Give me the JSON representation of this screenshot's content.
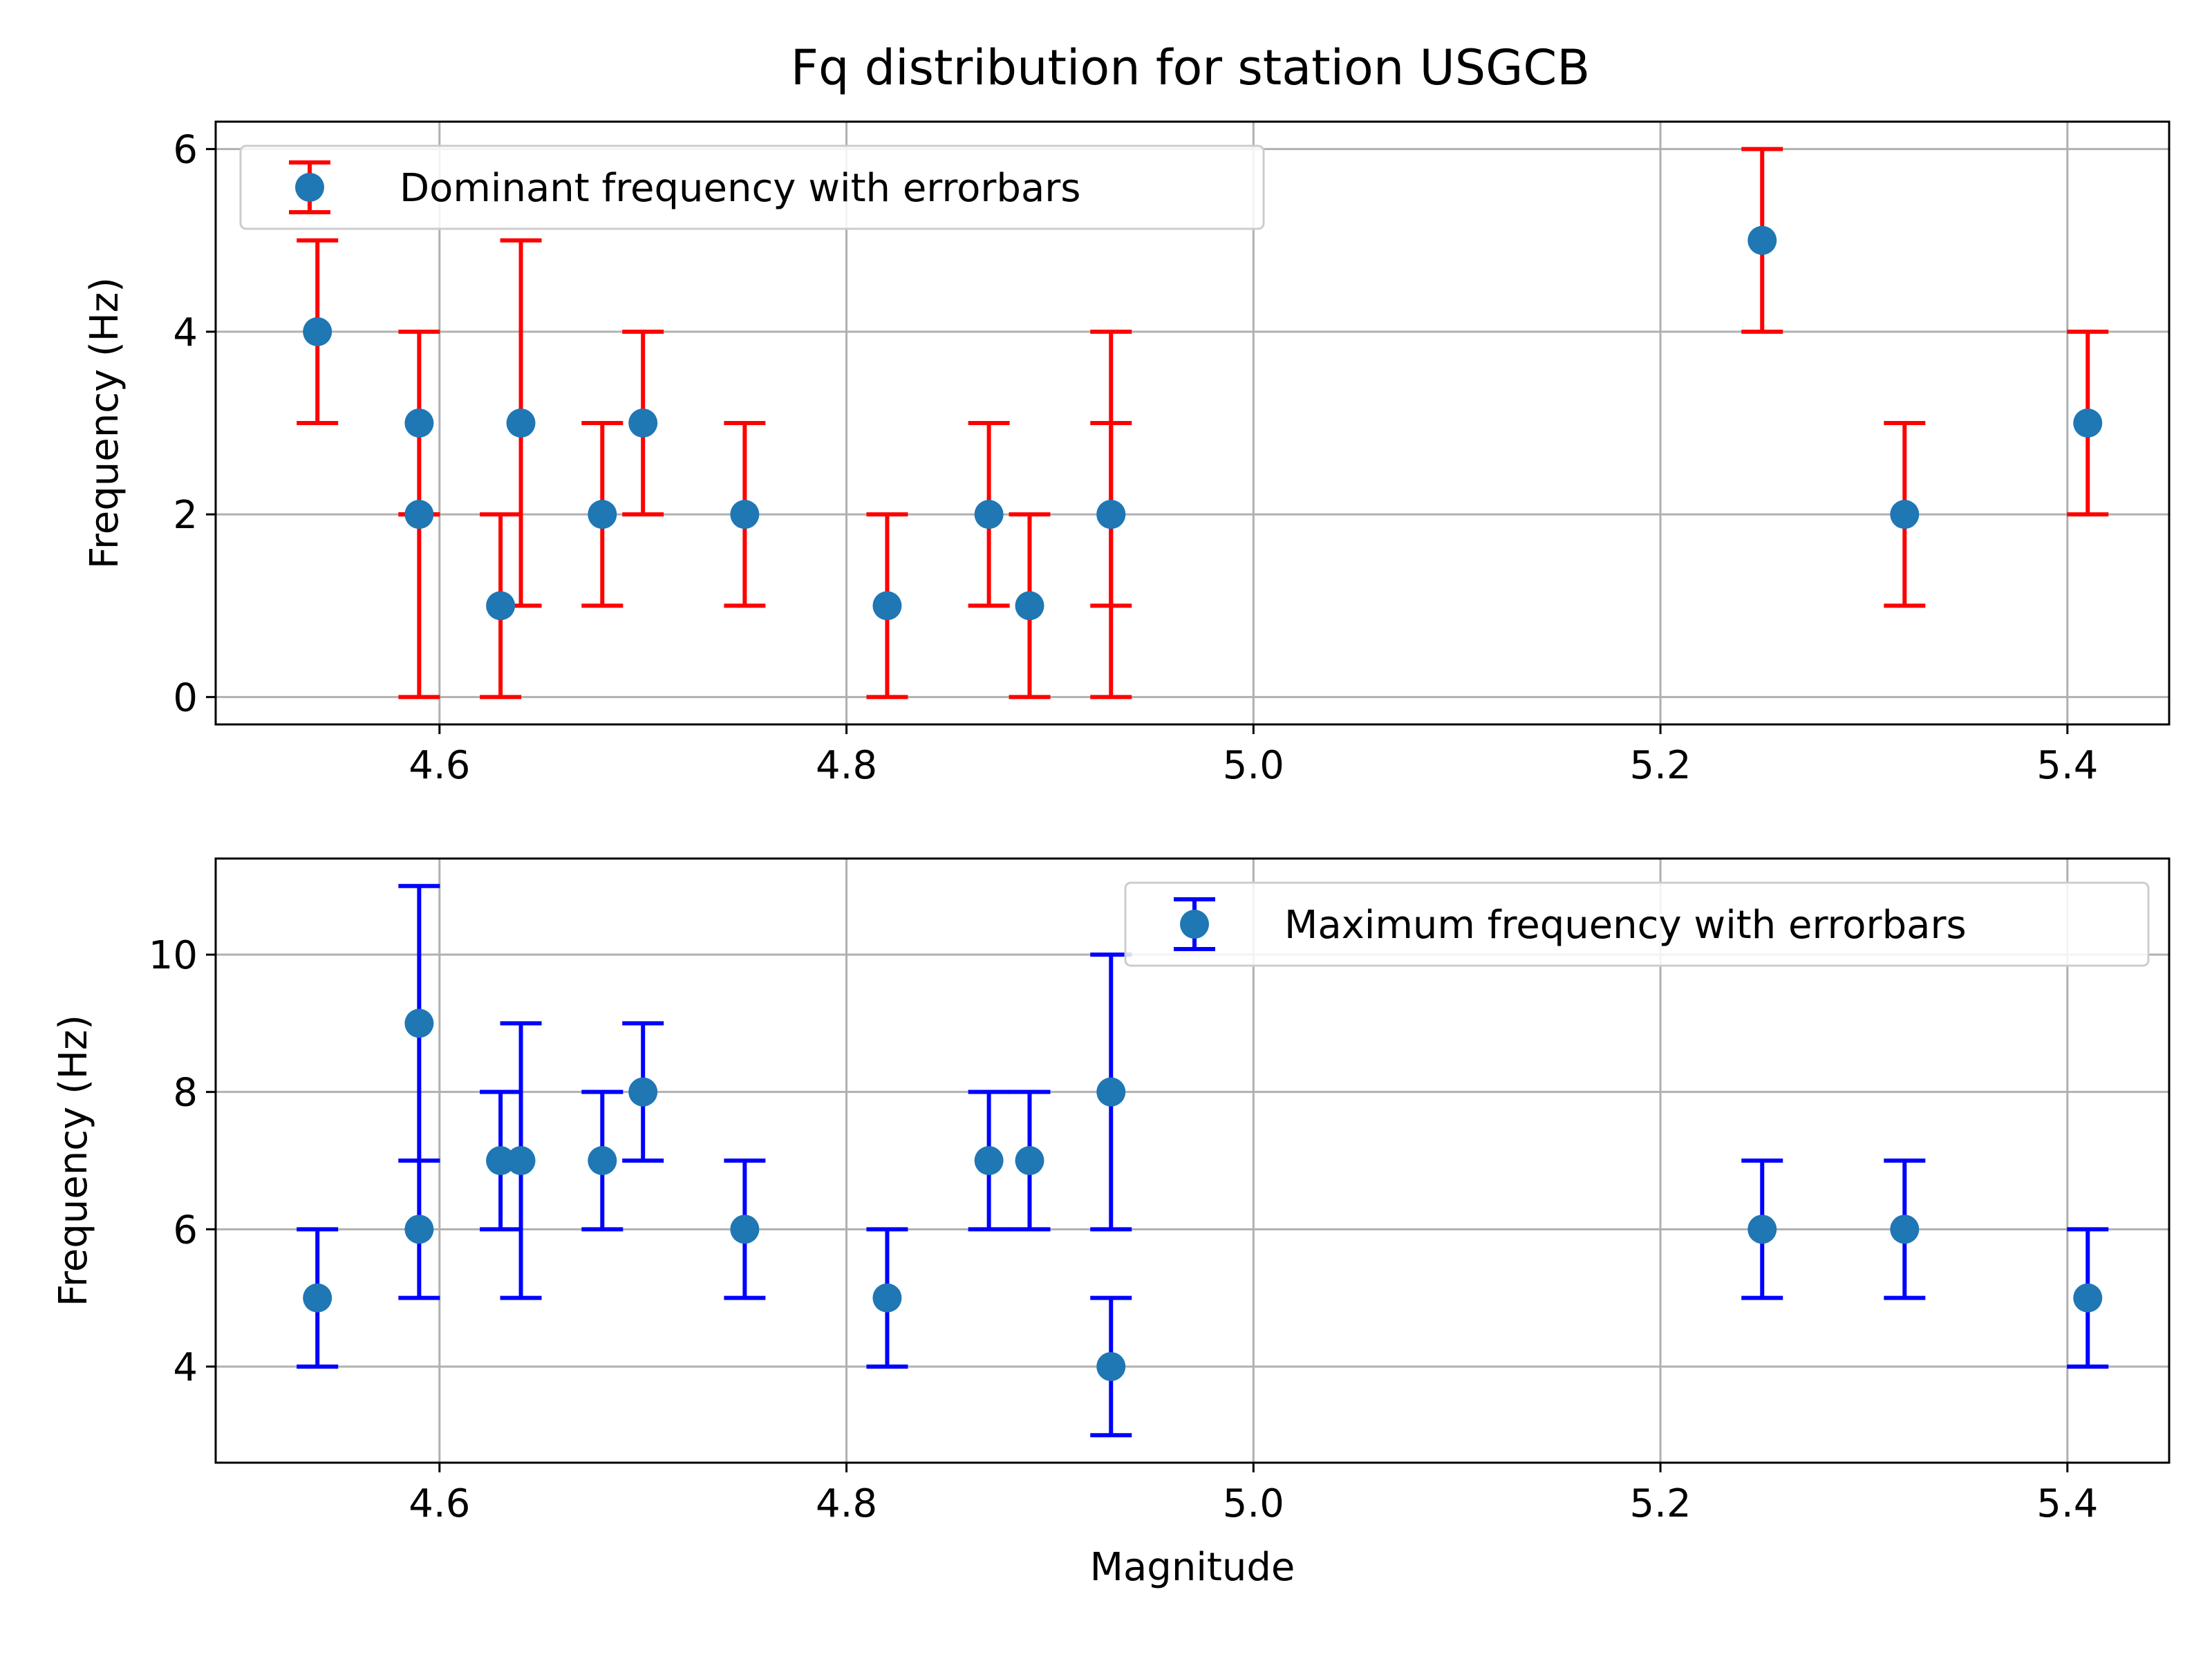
{
  "figure": {
    "title": "Fq distribution for station USGCB"
  },
  "chart_data": [
    {
      "type": "scatter",
      "title": "Fq distribution for station USGCB",
      "xlabel": "",
      "ylabel": "Frequency (Hz)",
      "xlim": [
        4.49,
        5.45
      ],
      "ylim": [
        -0.3,
        6.3
      ],
      "xticks": [
        4.6,
        4.8,
        5.0,
        5.2,
        5.4
      ],
      "xtick_labels": [
        "4.6",
        "4.8",
        "5.0",
        "5.2",
        "5.4"
      ],
      "yticks": [
        0,
        2,
        4,
        6
      ],
      "ytick_labels": [
        "0",
        "2",
        "4",
        "6"
      ],
      "grid": true,
      "legend_position": "top-left",
      "series": [
        {
          "name": "Dominant frequency with errorbars",
          "marker_color": "#1f77b4",
          "errorbar_color": "#ff0000",
          "points": [
            {
              "x": 4.54,
              "y": 4,
              "ymin": 3,
              "ymax": 5
            },
            {
              "x": 4.59,
              "y": 3,
              "ymin": 2,
              "ymax": 4
            },
            {
              "x": 4.59,
              "y": 2,
              "ymin": 0,
              "ymax": 2
            },
            {
              "x": 4.63,
              "y": 1,
              "ymin": 0,
              "ymax": 2
            },
            {
              "x": 4.64,
              "y": 3,
              "ymin": 1,
              "ymax": 5
            },
            {
              "x": 4.68,
              "y": 2,
              "ymin": 1,
              "ymax": 3
            },
            {
              "x": 4.7,
              "y": 3,
              "ymin": 2,
              "ymax": 4
            },
            {
              "x": 4.75,
              "y": 2,
              "ymin": 1,
              "ymax": 3
            },
            {
              "x": 4.82,
              "y": 1,
              "ymin": 0,
              "ymax": 2
            },
            {
              "x": 4.87,
              "y": 2,
              "ymin": 1,
              "ymax": 3
            },
            {
              "x": 4.89,
              "y": 1,
              "ymin": 0,
              "ymax": 2
            },
            {
              "x": 4.93,
              "y": 2,
              "ymin": 1,
              "ymax": 4
            },
            {
              "x": 4.93,
              "y": 2,
              "ymin": 0,
              "ymax": 3
            },
            {
              "x": 5.25,
              "y": 5,
              "ymin": 4,
              "ymax": 6
            },
            {
              "x": 5.32,
              "y": 2,
              "ymin": 1,
              "ymax": 3
            },
            {
              "x": 5.41,
              "y": 3,
              "ymin": 2,
              "ymax": 4
            }
          ]
        }
      ]
    },
    {
      "type": "scatter",
      "title": "",
      "xlabel": "Magnitude",
      "ylabel": "Frequency (Hz)",
      "xlim": [
        4.49,
        5.45
      ],
      "ylim": [
        2.6,
        11.4
      ],
      "xticks": [
        4.6,
        4.8,
        5.0,
        5.2,
        5.4
      ],
      "xtick_labels": [
        "4.6",
        "4.8",
        "5.0",
        "5.2",
        "5.4"
      ],
      "yticks": [
        4,
        6,
        8,
        10
      ],
      "ytick_labels": [
        "4",
        "6",
        "8",
        "10"
      ],
      "grid": true,
      "legend_position": "top-right",
      "series": [
        {
          "name": "Maximum frequency with errorbars",
          "marker_color": "#1f77b4",
          "errorbar_color": "#0000ff",
          "points": [
            {
              "x": 4.54,
              "y": 5,
              "ymin": 4,
              "ymax": 6
            },
            {
              "x": 4.59,
              "y": 9,
              "ymin": 7,
              "ymax": 11
            },
            {
              "x": 4.59,
              "y": 6,
              "ymin": 5,
              "ymax": 7
            },
            {
              "x": 4.63,
              "y": 7,
              "ymin": 6,
              "ymax": 8
            },
            {
              "x": 4.64,
              "y": 7,
              "ymin": 5,
              "ymax": 9
            },
            {
              "x": 4.68,
              "y": 7,
              "ymin": 6,
              "ymax": 8
            },
            {
              "x": 4.7,
              "y": 8,
              "ymin": 7,
              "ymax": 9
            },
            {
              "x": 4.75,
              "y": 6,
              "ymin": 5,
              "ymax": 7
            },
            {
              "x": 4.82,
              "y": 5,
              "ymin": 4,
              "ymax": 6
            },
            {
              "x": 4.87,
              "y": 7,
              "ymin": 6,
              "ymax": 8
            },
            {
              "x": 4.89,
              "y": 7,
              "ymin": 6,
              "ymax": 8
            },
            {
              "x": 4.93,
              "y": 8,
              "ymin": 6,
              "ymax": 10
            },
            {
              "x": 4.93,
              "y": 4,
              "ymin": 3,
              "ymax": 5
            },
            {
              "x": 5.25,
              "y": 6,
              "ymin": 5,
              "ymax": 7
            },
            {
              "x": 5.32,
              "y": 6,
              "ymin": 5,
              "ymax": 7
            },
            {
              "x": 5.41,
              "y": 5,
              "ymin": 4,
              "ymax": 6
            }
          ]
        }
      ]
    }
  ]
}
